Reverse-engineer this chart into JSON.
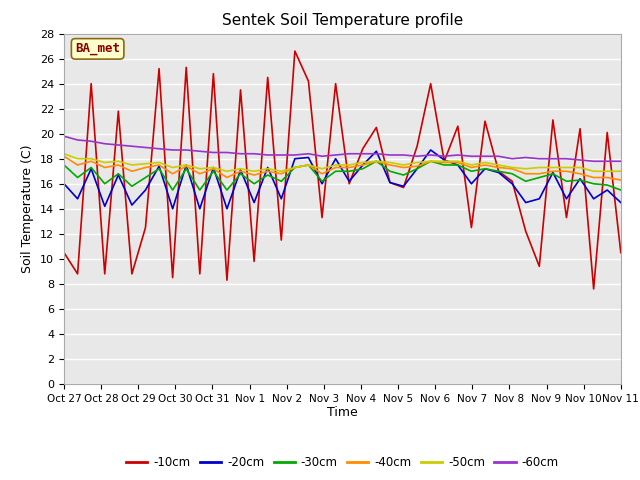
{
  "title": "Sentek Soil Temperature profile",
  "xlabel": "Time",
  "ylabel": "Soil Temperature (C)",
  "ylim": [
    0,
    28
  ],
  "yticks": [
    0,
    2,
    4,
    6,
    8,
    10,
    12,
    14,
    16,
    18,
    20,
    22,
    24,
    26,
    28
  ],
  "x_labels": [
    "Oct 27",
    "Oct 28",
    "Oct 29",
    "Oct 30",
    "Oct 31",
    "Nov 1",
    "Nov 2",
    "Nov 3",
    "Nov 4",
    "Nov 5",
    "Nov 6",
    "Nov 7",
    "Nov 8",
    "Nov 9",
    "Nov 10",
    "Nov 11"
  ],
  "annotation_text": "BA_met",
  "annotation_color": "#8B0000",
  "annotation_bg": "#FFFFCC",
  "annotation_edge": "#8B6914",
  "series": {
    "-10cm": {
      "color": "#CC0000",
      "linewidth": 1.2,
      "values": [
        10.5,
        8.8,
        24.0,
        8.8,
        21.8,
        8.8,
        12.5,
        25.2,
        8.5,
        25.3,
        8.8,
        24.8,
        8.3,
        23.5,
        9.8,
        24.5,
        11.5,
        26.6,
        24.2,
        13.3,
        24.0,
        16.0,
        18.8,
        20.5,
        16.1,
        15.7,
        19.0,
        24.0,
        17.8,
        20.6,
        12.5,
        21.0,
        17.0,
        16.2,
        12.2,
        9.4,
        21.1,
        13.3,
        20.4,
        7.6,
        20.1,
        10.5
      ]
    },
    "-20cm": {
      "color": "#0000CC",
      "linewidth": 1.2,
      "values": [
        16.0,
        14.8,
        17.2,
        14.2,
        16.7,
        14.3,
        15.5,
        17.4,
        14.0,
        17.5,
        14.0,
        17.3,
        14.0,
        17.1,
        14.5,
        17.3,
        14.8,
        18.0,
        18.1,
        16.0,
        18.0,
        16.2,
        17.5,
        18.6,
        16.1,
        15.8,
        17.2,
        18.7,
        17.9,
        17.5,
        16.0,
        17.2,
        16.9,
        16.0,
        14.5,
        14.8,
        16.9,
        14.8,
        16.4,
        14.8,
        15.5,
        14.5
      ]
    },
    "-30cm": {
      "color": "#00AA00",
      "linewidth": 1.2,
      "values": [
        17.5,
        16.5,
        17.3,
        16.0,
        16.8,
        15.8,
        16.5,
        17.2,
        15.5,
        17.2,
        15.5,
        17.0,
        15.5,
        16.8,
        16.0,
        16.7,
        16.2,
        17.3,
        17.5,
        16.2,
        17.0,
        17.0,
        17.2,
        17.8,
        17.0,
        16.7,
        17.2,
        17.8,
        17.5,
        17.5,
        17.0,
        17.2,
        17.0,
        16.8,
        16.2,
        16.5,
        16.8,
        16.2,
        16.3,
        16.0,
        15.9,
        15.5
      ]
    },
    "-40cm": {
      "color": "#FF8C00",
      "linewidth": 1.2,
      "values": [
        18.2,
        17.5,
        17.8,
        17.3,
        17.5,
        17.0,
        17.3,
        17.5,
        16.8,
        17.4,
        16.8,
        17.2,
        16.5,
        17.0,
        16.7,
        17.0,
        16.8,
        17.3,
        17.5,
        16.8,
        17.3,
        17.3,
        17.5,
        17.8,
        17.5,
        17.3,
        17.4,
        17.8,
        17.7,
        17.7,
        17.3,
        17.5,
        17.3,
        17.2,
        16.8,
        16.8,
        17.0,
        17.0,
        16.8,
        16.5,
        16.5,
        16.3
      ]
    },
    "-50cm": {
      "color": "#CCCC00",
      "linewidth": 1.2,
      "values": [
        18.4,
        18.0,
        18.0,
        17.7,
        17.8,
        17.5,
        17.6,
        17.7,
        17.3,
        17.5,
        17.2,
        17.3,
        17.0,
        17.2,
        17.0,
        17.2,
        17.0,
        17.3,
        17.5,
        17.2,
        17.5,
        17.5,
        17.7,
        17.8,
        17.7,
        17.5,
        17.7,
        17.8,
        17.8,
        17.8,
        17.5,
        17.7,
        17.5,
        17.3,
        17.2,
        17.3,
        17.3,
        17.3,
        17.3,
        17.0,
        17.0,
        17.0
      ]
    },
    "-60cm": {
      "color": "#9933CC",
      "linewidth": 1.2,
      "values": [
        19.8,
        19.5,
        19.4,
        19.2,
        19.1,
        19.0,
        18.9,
        18.8,
        18.7,
        18.7,
        18.6,
        18.5,
        18.5,
        18.4,
        18.4,
        18.3,
        18.3,
        18.3,
        18.4,
        18.2,
        18.3,
        18.4,
        18.4,
        18.4,
        18.3,
        18.3,
        18.2,
        18.3,
        18.2,
        18.3,
        18.2,
        18.2,
        18.2,
        18.0,
        18.1,
        18.0,
        18.0,
        18.0,
        17.9,
        17.8,
        17.8,
        17.8
      ]
    }
  },
  "fig_bg_color": "#FFFFFF",
  "plot_bg_color": "#E8E8E8",
  "grid_color": "#FFFFFF",
  "n_days": 15.0
}
